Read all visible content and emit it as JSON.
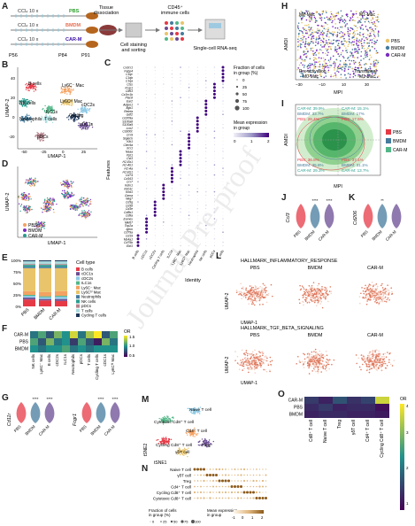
{
  "watermark": "Journal Pre-proof",
  "panel_labels": [
    "A",
    "B",
    "C",
    "D",
    "E",
    "F",
    "G",
    "H",
    "I",
    "J",
    "K",
    "L",
    "M",
    "N",
    "O"
  ],
  "A": {
    "rows": [
      {
        "dose": "CCl₄ 10 x",
        "tag": "PBS",
        "color": "#2ca02c"
      },
      {
        "dose": "CCl₄ 10 x",
        "tag": "BMDM",
        "color": "#e76f51"
      },
      {
        "dose": "CCl₄ 10 x",
        "tag": "CAR-M",
        "color": "#3a0ca3"
      }
    ],
    "days": [
      "P56",
      "P84",
      "P91"
    ],
    "tissue": "Tissue\ndissociation",
    "staining": "Cell staining\nand sorting",
    "cd45": "CD45⁺\nimmune cells",
    "seq": "Single-cell RNA-seq"
  },
  "B": {
    "xlabel": "UMAP-1",
    "ylabel": "UMAP-2",
    "xticks": [
      "-50",
      "-25",
      "0",
      "25"
    ],
    "yticks": [
      "40",
      "20",
      "0",
      "-20"
    ],
    "clusters": [
      "B cells",
      "NK cells",
      "Ly6C⁻ Mac",
      "Ly6Cʰⁱ Mac",
      "cDC2s",
      "ILC1s",
      "Cycling",
      "cDC1s",
      "T cells",
      "Neutrophils",
      "pDCs"
    ]
  },
  "C": {
    "genes": [
      "Cx3cr1",
      "Fabp4",
      "C1qc",
      "C1qb",
      "C1qa",
      "Ctss",
      "Fcgr1",
      "Cd63",
      "Cx3cr1b",
      "Plac8",
      "Ear2",
      "Adgre1",
      "Itgb1",
      "Retnla",
      "Gdf2",
      "Cd209a",
      "S100a8",
      "S100a9",
      "Lcn2",
      "Cd300c",
      "Ccr9",
      "Siglech",
      "Klk1",
      "Clec9a",
      "Xcr1",
      "Naaa",
      "Ppt1",
      "Cst3",
      "H2-Eb1",
      "H2-Ab1",
      "H2-Aa",
      "H2-Eb1",
      "Cd74",
      "Cd163",
      "Ccr7",
      "Kdm1",
      "Klrb1c",
      "Klrd1",
      "Gzma",
      "Nkg7",
      "Cd3g",
      "Cd3d",
      "Cd3e",
      "Cd8b1",
      "Cd8a",
      "Eomes",
      "Mki67",
      "Top2a",
      "Ighm",
      "Cd79a",
      "Cd19",
      "Ms4a1",
      "Cd79b",
      "Ebf1"
    ],
    "identities": [
      "B cells",
      "cDC1s",
      "cDC2s",
      "Cycling T cells",
      "ILC1s",
      "Ly6C⁻ Mac",
      "Ly6Cʰⁱ Mac",
      "Neutrophils",
      "NK cells",
      "pDCs",
      "T cells"
    ],
    "ylabel": "Features",
    "xlabel": "Identity",
    "legend_frac_title": "Fraction of cells\nin group (%)",
    "legend_frac_vals": [
      "0",
      "25",
      "50",
      "75",
      "100"
    ],
    "legend_expr_title": "Mean expression\nin group",
    "legend_expr_vals": [
      "0",
      "1",
      "2"
    ]
  },
  "D": {
    "xlabel": "UMAP-1",
    "ylabel": "UMAP-2",
    "legend": [
      {
        "name": "PBS",
        "color": "#f4a261"
      },
      {
        "name": "BMDM",
        "color": "#7b2cbf"
      },
      {
        "name": "CAR-M",
        "color": "#2a9d8f"
      }
    ]
  },
  "E": {
    "title": "Cell type",
    "yticks": [
      "100%",
      "75%",
      "50%",
      "25%",
      "0%"
    ],
    "groups": [
      "PBS",
      "BMDM",
      "CAR-M"
    ],
    "types": [
      {
        "name": "B cells",
        "color": "#e63946"
      },
      {
        "name": "cDC1s",
        "color": "#6a4c93"
      },
      {
        "name": "cDC2s",
        "color": "#8ecae6"
      },
      {
        "name": "ILC1s",
        "color": "#52b788"
      },
      {
        "name": "Ly6C⁻ Mac",
        "color": "#f4a261"
      },
      {
        "name": "Ly6Cʰⁱ Mac",
        "color": "#e9c46a"
      },
      {
        "name": "Neutrophils",
        "color": "#457b9d"
      },
      {
        "name": "NK cells",
        "color": "#2a9d8f"
      },
      {
        "name": "pDCs",
        "color": "#b5838d"
      },
      {
        "name": "T cells",
        "color": "#a8dadc"
      },
      {
        "name": "Cycling T cells",
        "color": "#1d3557"
      }
    ],
    "values": [
      [
        0.15,
        0.04,
        0.04,
        0.02,
        0.08,
        0.5,
        0.03,
        0.04,
        0.02,
        0.06,
        0.02
      ],
      [
        0.13,
        0.03,
        0.04,
        0.02,
        0.09,
        0.52,
        0.03,
        0.04,
        0.02,
        0.06,
        0.02
      ],
      [
        0.12,
        0.04,
        0.05,
        0.02,
        0.1,
        0.5,
        0.03,
        0.04,
        0.02,
        0.06,
        0.02
      ]
    ]
  },
  "F": {
    "rows": [
      "CAR-M",
      "PBS",
      "BMDM"
    ],
    "cols": [
      "NK cells",
      "Ly6C⁻ Mac",
      "B cells",
      "cDC2s",
      "ILC1s",
      "Neutrophils",
      "pDCs",
      "T cells",
      "Cycling T cells",
      "cDC1s",
      "Ly6Cʰⁱ Mac"
    ],
    "legend_title": "OR",
    "legend_vals": [
      "1.5",
      "1.0",
      "0.5"
    ],
    "values": [
      [
        0.9,
        1.1,
        0.8,
        1.2,
        1.0,
        1.4,
        0.9,
        1.3,
        1.5,
        0.8,
        1.1
      ],
      [
        1.1,
        0.8,
        1.2,
        0.9,
        1.0,
        0.7,
        1.1,
        0.8,
        0.6,
        1.2,
        0.9
      ],
      [
        1.0,
        0.9,
        1.0,
        1.0,
        1.1,
        0.9,
        1.0,
        0.9,
        1.0,
        1.0,
        1.0
      ]
    ]
  },
  "G": {
    "genes": [
      "Cd11r",
      "Fcgr1"
    ],
    "groups": [
      "PBS",
      "BMDM",
      "CAR-M"
    ],
    "sig": [
      "****",
      "****"
    ],
    "colors": [
      "#e63946",
      "#457b9d",
      "#6a4c93"
    ]
  },
  "H": {
    "xlabel": "MPI",
    "ylabel": "AMDI",
    "labels": {
      "tl": "M2-Mac",
      "tr": "M1-Mac",
      "bl": "Pre-activation",
      "bl2": "M0-Mac",
      "br": "Transitional",
      "br2": "M1-Mac"
    },
    "legend": [
      {
        "name": "PBS",
        "color": "#e9c46a"
      },
      {
        "name": "BMDM",
        "color": "#457b9d"
      },
      {
        "name": "CAR-M",
        "color": "#7b2cbf"
      }
    ]
  },
  "I": {
    "xlabel": "MPI",
    "ylabel": "AMDI",
    "legend": [
      {
        "name": "PBS",
        "color": "#e63946"
      },
      {
        "name": "BMDM",
        "color": "#457b9d"
      },
      {
        "name": "CAR-M",
        "color": "#52b788"
      }
    ],
    "quadrants": {
      "tl": [
        "CAR-M: 39.9%",
        "BMDM: 33.7%",
        "PBS: 26.4%"
      ],
      "tr": [
        "CAR-M: 15.1%",
        "BMDM: 17%",
        "PBS: 17.5%"
      ],
      "bl": [
        "PBS: 36.8%",
        "BMDM: 35.8%",
        "CAR-M: 29.3%"
      ],
      "br": [
        "PBS: 37.1%",
        "BMDM: 31.1%",
        "CAR-M: 13.7%"
      ]
    }
  },
  "J": {
    "gene": "Ccl3",
    "groups": [
      "PBS",
      "BMDM",
      "CAR-M"
    ],
    "sig": [
      "****",
      "****"
    ],
    "colors": [
      "#e63946",
      "#457b9d",
      "#6a4c93"
    ]
  },
  "K": {
    "gene": "Cd206",
    "groups": [
      "PBS",
      "BMDM",
      "CAR-M"
    ],
    "sig": [
      "**"
    ],
    "colors": [
      "#e63946",
      "#457b9d",
      "#6a4c93"
    ]
  },
  "L": {
    "row1": "HALLMARK_INFLAMMATORY_RESPONSE",
    "row2": "HALLMARK_TGF_BETA_SIGNALING",
    "groups": [
      "PBS",
      "BMDM",
      "CAR-M"
    ],
    "xlabel": "UMAP-1",
    "ylabel": "UMAP-2"
  },
  "M": {
    "xlabel": "tSNE1",
    "ylabel": "tSNE2",
    "clusters": [
      "Naive T cell",
      "Cytotoxic Cd8⁺ T cell",
      "Cd4⁺ T cell",
      "Treg",
      "Cycling Cd8⁺ T cell",
      "γδT cell"
    ]
  },
  "N": {
    "rows": [
      "Naive T cell",
      "γδT cell",
      "Treg",
      "Cd4⁺ T cell",
      "Cycling Cd8⁺ T cell",
      "Cytotoxic Cd8⁺ T cell"
    ],
    "legend_frac_title": "Fraction of cells\nin group (%)",
    "legend_frac_vals": [
      "0",
      "25",
      "50",
      "75",
      "100"
    ],
    "legend_expr_title": "Mean expression\nin group",
    "legend_expr_vals": [
      "-1",
      "0",
      "1",
      "2"
    ]
  },
  "O": {
    "rows": [
      "CAR-M",
      "PBS",
      "BMDM"
    ],
    "cols": [
      "Cd8⁺ T cell",
      "Naive T cell",
      "Treg",
      "γδT cell",
      "Cd4⁺ T cell",
      "Cycling Cd8⁺ T cell"
    ],
    "legend_title": "OR",
    "legend_vals": [
      "4",
      "3",
      "2",
      "1"
    ],
    "values": [
      [
        1.2,
        0.9,
        1.5,
        1.1,
        1.3,
        3.6
      ],
      [
        1.0,
        1.2,
        0.9,
        1.0,
        1.0,
        0.7
      ],
      [
        0.9,
        1.0,
        1.0,
        0.9,
        0.9,
        0.8
      ]
    ]
  }
}
